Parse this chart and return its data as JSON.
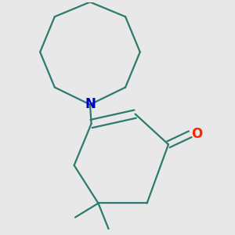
{
  "background_color": "#e8e8e8",
  "bond_color": "#2d7a6e",
  "n_color": "#0000cc",
  "o_color": "#ff2200",
  "line_width": 1.6,
  "figsize": [
    3.0,
    3.0
  ],
  "dpi": 100,
  "xlim": [
    0.1,
    0.9
  ],
  "ylim": [
    0.05,
    0.95
  ],
  "n_fontsize": 12,
  "o_fontsize": 12,
  "me_fontsize": 9
}
